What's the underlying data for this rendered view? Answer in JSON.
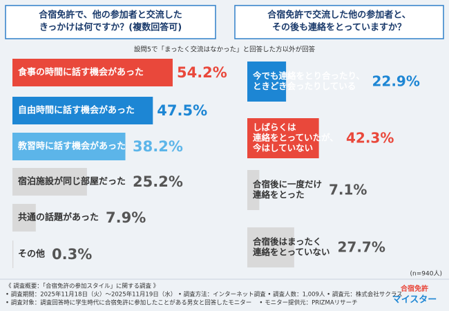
{
  "chart_data": [
    {
      "type": "hbar",
      "title": [
        "合宿免許で、他の参加者と交流した",
        "きっかけは何ですか？(複数回答可)"
      ],
      "categories": [
        [
          "食事の時間に話す機会があった"
        ],
        [
          "自由時間に話す機会があった"
        ],
        [
          "教習時に話す機会があった"
        ],
        [
          "宿泊施設が同じ部屋だった"
        ],
        [
          "共通の話題があった"
        ],
        [
          "その他"
        ]
      ],
      "values": [
        54.2,
        47.5,
        38.2,
        25.2,
        7.9,
        0.3
      ],
      "value_labels": [
        "54.2%",
        "47.5%",
        "38.2%",
        "25.2%",
        "7.9%",
        "0.3%"
      ],
      "colors": [
        "#e9483b",
        "#1d86d4",
        "#5cb5e9",
        "#d9d9d9",
        "#d9d9d9",
        "#d9d9d9"
      ],
      "category_colors": [
        "#ffffff",
        "#ffffff",
        "#ffffff",
        "#333333",
        "#333333",
        "#333333"
      ],
      "label_colors": [
        "#e9483b",
        "#1d86d4",
        "#5cb5e9",
        "#555555",
        "#555555",
        "#555555"
      ]
    },
    {
      "type": "hbar",
      "title": [
        "合宿免許で交流した他の参加者と、",
        "その後も連絡をとっていますか？"
      ],
      "categories": [
        [
          "今でも連絡をとり合ったり、",
          "ときどき会ったりしている"
        ],
        [
          "しばらくは",
          "連絡をとっていたが、",
          "今はしていない"
        ],
        [
          "合宿後に一度だけ",
          "連絡をとった"
        ],
        [
          "合宿後はまったく",
          "連絡をとっていない"
        ]
      ],
      "values": [
        22.9,
        42.3,
        7.1,
        27.7
      ],
      "value_labels": [
        "22.9%",
        "42.3%",
        "7.1%",
        "27.7%"
      ],
      "colors": [
        "#1d86d4",
        "#e9483b",
        "#d9d9d9",
        "#d9d9d9"
      ],
      "category_colors": [
        "#ffffff",
        "#ffffff",
        "#333333",
        "#333333"
      ],
      "label_colors": [
        "#1d86d4",
        "#e9483b",
        "#555555",
        "#555555"
      ],
      "sample": "(n=940人)"
    }
  ],
  "note": "設問5で「まったく交流はなかった」と回答した方以外が回答",
  "footer": [
    "《 調査概要：「合宿免許の参加スタイル」に関する調査 》",
    "• 調査期間：2025年11月18日（火）～2025年11月19日（水） • 調査方法：インターネット調査 • 調査人数：1,009人 • 調査元：株式会社サクラス",
    "• 調査対象：調査回答時に学生時代に合宿免許に参加したことがある男女と回答したモニター　 • モニター提供元：PRIZMAリサーチ"
  ],
  "logo": [
    "合宿免許",
    "マイスター"
  ]
}
